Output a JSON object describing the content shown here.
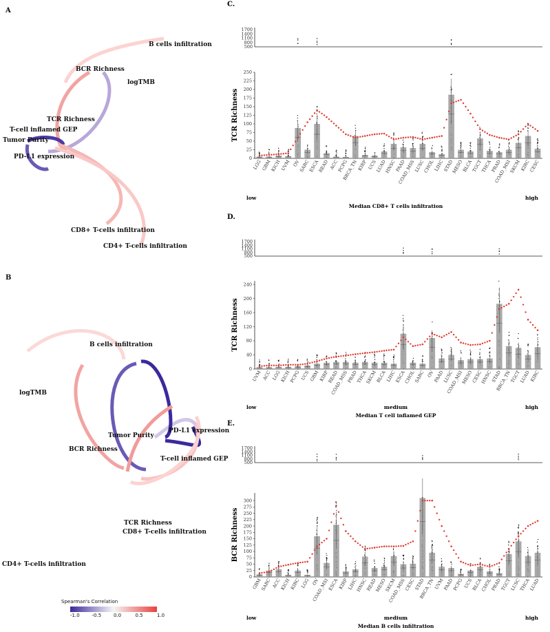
{
  "panels": {
    "A": {
      "label": "A",
      "nodes": {
        "b_cells": "B cells infiltration",
        "bcr": "BCR Richness",
        "logtmb": "logTMB",
        "tcr": "TCR Richness",
        "tcell_gep": "T-cell inflamed GEP",
        "purity": "Tumor Purity",
        "pdl1": "PD-L1 expression",
        "cd8": "CD8+ T-cells infiltration",
        "cd4": "CD4+ T-cells infiltration"
      }
    },
    "B": {
      "label": "B",
      "nodes": {
        "b_cells": "B cells infiltration",
        "logtmb": "logTMB",
        "pdl1": "PD-L1 expression",
        "purity": "Tumor Purity",
        "bcr": "BCR Richness",
        "tcell_gep": "T-cell inflamed GEP",
        "tcr": "TCR Richness",
        "cd8": "CD8+ T-cells infiltration",
        "cd4": "CD4+ T-cells infiltration"
      }
    }
  },
  "legend": {
    "title": "Spearman's Correlation",
    "ticks": [
      "-1.0",
      "-0.5",
      "0.0",
      "0.5",
      "1.0"
    ],
    "low_color": "#3a2a9c",
    "mid_color": "#f5f5f5",
    "high_color": "#e8423f"
  },
  "chart_data": [
    {
      "type": "bar",
      "panel": "C.",
      "ylabel": "TCR Richness",
      "xlabel": "Median CD8+ T cells infiltration",
      "xlabel_low": "low",
      "xlabel_mid": "",
      "xlabel_high": "high",
      "ylim": [
        0,
        250
      ],
      "yticks": [
        0,
        25,
        50,
        75,
        100,
        125,
        150,
        175,
        200,
        225,
        250
      ],
      "outlier_ticks": [
        "1700",
        "1400",
        "1100",
        "800",
        "500"
      ],
      "categories": [
        "LGG",
        "GBM",
        "KICH",
        "UVM",
        "OV",
        "SARC",
        "ESCA",
        "READ",
        "ACC",
        "PCPG",
        "BRCA_TN",
        "KIRP",
        "UCS",
        "LUAD",
        "HNSC",
        "PAAD",
        "COAD_MSS",
        "LUSC",
        "CHOL",
        "LIHC",
        "STAD",
        "MESO",
        "BLCA",
        "TGCT",
        "THCA",
        "PRAD",
        "COAD_MSI",
        "SKCM",
        "KIRC",
        "CESC"
      ],
      "values": [
        5,
        5,
        8,
        6,
        88,
        25,
        100,
        15,
        5,
        4,
        65,
        10,
        8,
        20,
        42,
        32,
        30,
        42,
        18,
        12,
        185,
        25,
        20,
        58,
        22,
        18,
        25,
        45,
        65,
        28
      ],
      "trend": [
        8,
        10,
        12,
        15,
        60,
        105,
        140,
        120,
        95,
        70,
        60,
        65,
        70,
        72,
        55,
        60,
        62,
        55,
        60,
        65,
        160,
        170,
        130,
        85,
        68,
        60,
        55,
        70,
        100,
        80
      ]
    },
    {
      "type": "bar",
      "panel": "D.",
      "ylabel": "TCR Richness",
      "xlabel": "Median T cell inflamed GEP",
      "xlabel_low": "low",
      "xlabel_mid": "medium",
      "xlabel_high": "high",
      "ylim": [
        0,
        250
      ],
      "yticks": [
        0,
        40,
        80,
        120,
        160,
        200,
        240
      ],
      "outlier_ticks": [
        "1700",
        "1400",
        "1100",
        "800",
        "500"
      ],
      "categories": [
        "UVM",
        "ACC",
        "LGG",
        "KICH",
        "PCPG",
        "UCS",
        "GBM",
        "KIRP",
        "READ",
        "COAD_MSS",
        "PRAD",
        "THCA",
        "SKCM",
        "BLCA",
        "LIHC",
        "ESCA",
        "CHOL",
        "SARC",
        "OV",
        "PAAD",
        "LUSC",
        "COAD_MSI",
        "MESO",
        "CESC",
        "HNSC",
        "STAD",
        "BRCA_TN",
        "TGCT",
        "LUAD",
        "KIRC"
      ],
      "values": [
        5,
        5,
        6,
        6,
        8,
        10,
        15,
        18,
        20,
        20,
        18,
        20,
        18,
        18,
        15,
        100,
        18,
        15,
        88,
        30,
        40,
        25,
        28,
        28,
        30,
        185,
        65,
        60,
        40,
        62
      ],
      "trend": [
        8,
        10,
        10,
        12,
        12,
        15,
        22,
        30,
        35,
        38,
        42,
        45,
        48,
        52,
        55,
        90,
        65,
        70,
        100,
        90,
        105,
        75,
        68,
        70,
        80,
        170,
        185,
        225,
        140,
        110
      ]
    },
    {
      "type": "bar",
      "panel": "E.",
      "ylabel": "BCR Richness",
      "xlabel": "Median B cells infiltration",
      "xlabel_low": "low",
      "xlabel_mid": "medium",
      "xlabel_high": "high",
      "ylim": [
        0,
        330
      ],
      "yticks": [
        0,
        25,
        50,
        75,
        100,
        125,
        150,
        175,
        200,
        225,
        250,
        275,
        300
      ],
      "outlier_ticks": [
        "1700",
        "1400",
        "1100",
        "800",
        "500"
      ],
      "categories": [
        "GBM",
        "SARC",
        "ACC",
        "KICH",
        "KIRC",
        "LGG",
        "OV",
        "COAD_MSI",
        "ESCA",
        "KIRP",
        "LIHC",
        "HNSC",
        "READ",
        "MESO",
        "SKCM",
        "COAD_MSS",
        "CESC",
        "STAD",
        "BRCA_TN",
        "UVM",
        "PAAD",
        "PCPG",
        "UCS",
        "BLCA",
        "CHOL",
        "PRAD",
        "TGCT",
        "LUSC",
        "THCA",
        "LUAD"
      ],
      "values": [
        10,
        25,
        30,
        8,
        25,
        8,
        160,
        55,
        205,
        22,
        30,
        80,
        35,
        40,
        82,
        50,
        52,
        310,
        95,
        40,
        35,
        12,
        25,
        40,
        22,
        15,
        90,
        140,
        82,
        95
      ],
      "trend": [
        15,
        20,
        40,
        48,
        55,
        60,
        120,
        150,
        280,
        180,
        140,
        110,
        115,
        120,
        120,
        122,
        140,
        300,
        300,
        200,
        120,
        60,
        45,
        50,
        40,
        55,
        110,
        160,
        200,
        220
      ]
    }
  ]
}
